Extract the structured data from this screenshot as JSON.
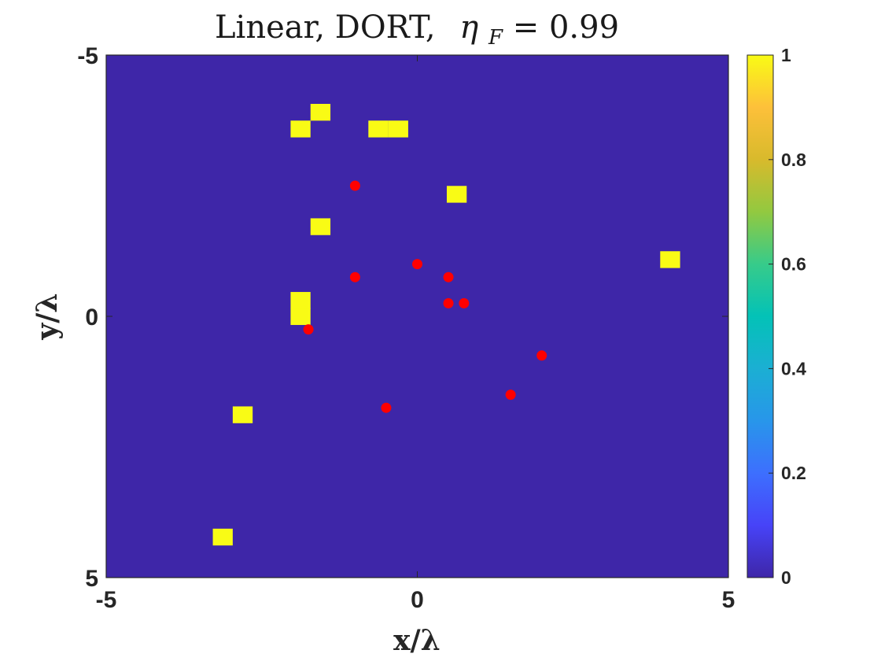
{
  "chart_data": {
    "type": "heatmap",
    "title": {
      "prefix": "Linear, DORT,",
      "symbol": "η",
      "subscript": "F",
      "suffix": " = 0.99"
    },
    "xlabel": "x/λ",
    "ylabel": "y/λ",
    "xlim": [
      -5,
      5
    ],
    "ylim": [
      -5,
      5
    ],
    "y_axis_reversed": true,
    "xticks": [
      "-5",
      "0",
      "5"
    ],
    "yticks": [
      "-5",
      "0",
      "5"
    ],
    "grid": false,
    "colormap": "parula",
    "colorbar": {
      "range": [
        0,
        1
      ],
      "ticks": [
        "0",
        "0.2",
        "0.4",
        "0.6",
        "0.8",
        "1"
      ]
    },
    "background_value": 0,
    "cell_size": 0.3125,
    "cells": [
      {
        "x": -1.56,
        "y": -3.91,
        "value": 1
      },
      {
        "x": -1.88,
        "y": -3.59,
        "value": 1
      },
      {
        "x": -0.63,
        "y": -3.59,
        "value": 1
      },
      {
        "x": -0.31,
        "y": -3.59,
        "value": 1
      },
      {
        "x": 0.63,
        "y": -2.34,
        "value": 1
      },
      {
        "x": -1.56,
        "y": -1.72,
        "value": 1
      },
      {
        "x": 4.06,
        "y": -1.09,
        "value": 1
      },
      {
        "x": -1.88,
        "y": -0.31,
        "value": 1
      },
      {
        "x": -1.88,
        "y": 0.0,
        "value": 1
      },
      {
        "x": -2.81,
        "y": 1.88,
        "value": 1
      },
      {
        "x": -3.13,
        "y": 4.22,
        "value": 1
      }
    ],
    "points": [
      {
        "x": -1.0,
        "y": -2.5
      },
      {
        "x": 0.0,
        "y": -1.0
      },
      {
        "x": -1.0,
        "y": -0.75
      },
      {
        "x": 0.5,
        "y": -0.75
      },
      {
        "x": 0.5,
        "y": -0.25
      },
      {
        "x": 0.75,
        "y": -0.25
      },
      {
        "x": -1.75,
        "y": 0.25
      },
      {
        "x": 2.0,
        "y": 0.75
      },
      {
        "x": 1.5,
        "y": 1.5
      },
      {
        "x": -0.5,
        "y": 1.75
      }
    ],
    "colors": {
      "background": "#3e26a8",
      "cell": "#f9fb15",
      "points": "#ff0000"
    }
  }
}
